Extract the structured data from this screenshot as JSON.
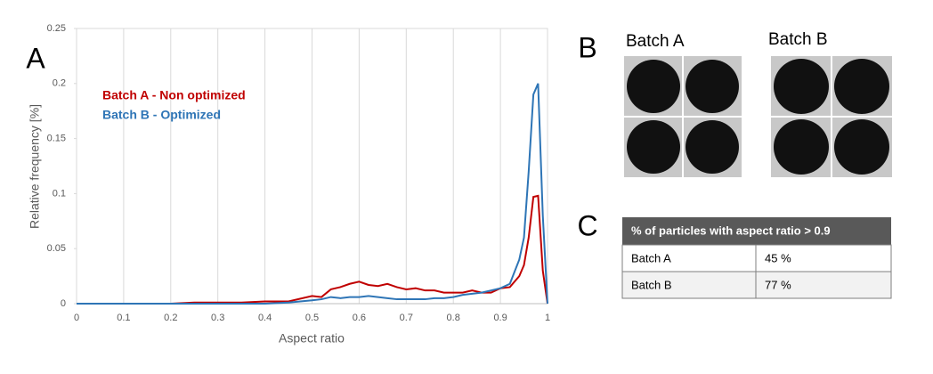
{
  "chart_data": {
    "type": "line",
    "x_label": "Aspect ratio",
    "y_label": "Relative frequency [%]",
    "x": [
      0,
      0.1,
      0.2,
      0.25,
      0.3,
      0.35,
      0.4,
      0.45,
      0.5,
      0.52,
      0.54,
      0.56,
      0.58,
      0.6,
      0.62,
      0.64,
      0.66,
      0.68,
      0.7,
      0.72,
      0.74,
      0.76,
      0.78,
      0.8,
      0.82,
      0.84,
      0.86,
      0.88,
      0.9,
      0.92,
      0.94,
      0.95,
      0.96,
      0.97,
      0.98,
      0.99,
      1.0
    ],
    "series": [
      {
        "name": "Batch A - Non optimized",
        "color": "#c00000",
        "values": [
          0,
          0,
          0,
          0.001,
          0.001,
          0.001,
          0.002,
          0.002,
          0.007,
          0.006,
          0.013,
          0.015,
          0.018,
          0.02,
          0.017,
          0.016,
          0.018,
          0.015,
          0.013,
          0.014,
          0.012,
          0.012,
          0.01,
          0.01,
          0.01,
          0.012,
          0.01,
          0.01,
          0.014,
          0.015,
          0.025,
          0.035,
          0.06,
          0.097,
          0.098,
          0.03,
          0
        ]
      },
      {
        "name": "Batch B - Optimized",
        "color": "#2e75b6",
        "values": [
          0,
          0,
          0,
          0,
          0,
          0,
          0,
          0.001,
          0.003,
          0.004,
          0.006,
          0.005,
          0.006,
          0.006,
          0.007,
          0.006,
          0.005,
          0.004,
          0.004,
          0.004,
          0.004,
          0.005,
          0.005,
          0.006,
          0.008,
          0.009,
          0.01,
          0.012,
          0.014,
          0.018,
          0.04,
          0.06,
          0.12,
          0.19,
          0.2,
          0.08,
          0
        ]
      }
    ],
    "xlim": [
      0,
      1
    ],
    "xticks": [
      0,
      0.1,
      0.2,
      0.3,
      0.4,
      0.5,
      0.6,
      0.7,
      0.8,
      0.9,
      1
    ],
    "ylim": [
      0,
      0.25
    ],
    "yticks": [
      0,
      0.05,
      0.1,
      0.15,
      0.2,
      0.25
    ],
    "grid": "x"
  },
  "panel_labels": [
    "A",
    "B",
    "C"
  ],
  "images": {
    "labels": [
      "Batch A",
      "Batch B"
    ]
  },
  "table": {
    "header": "% of particles with aspect ratio > 0.9",
    "rows": [
      [
        "Batch A",
        "45 %"
      ],
      [
        "Batch B",
        "77 %"
      ]
    ]
  }
}
